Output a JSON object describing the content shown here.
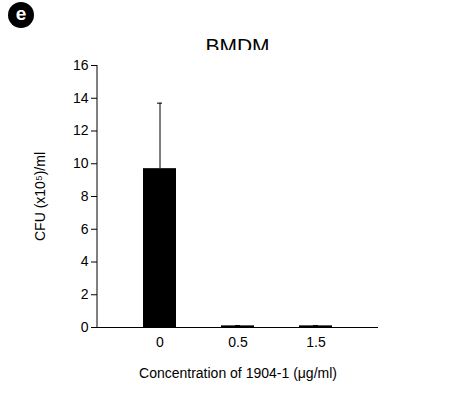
{
  "chart_data": {
    "type": "bar",
    "panel_label": "e",
    "title": "BMDM",
    "x_label": "Concentration of 1904-1 (μg/ml)",
    "y_label": "CFU (x10⁵)/ml",
    "categories": [
      "0",
      "0.5",
      "1.5"
    ],
    "values": [
      9.7,
      0.1,
      0.1
    ],
    "errors": [
      4.0,
      0.02,
      0.02
    ],
    "color": "#000000",
    "ylim": [
      0,
      16
    ],
    "yticks": [
      0,
      2,
      4,
      6,
      8,
      10,
      12,
      14,
      16
    ],
    "grid": false
  }
}
